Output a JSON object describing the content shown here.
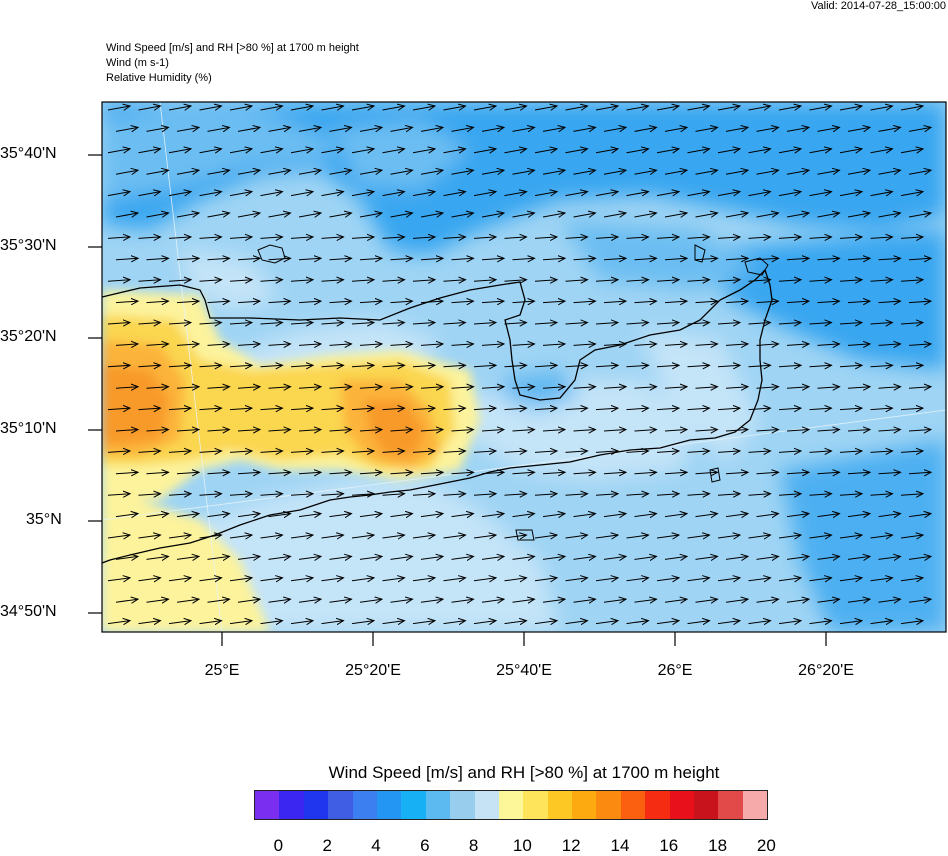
{
  "header": {
    "valid": "Valid: 2014-07-28_15:00:00",
    "title_lines": [
      "Wind Speed [m/s] and RH [>80 %] at 1700 m height",
      "Wind   (m s-1)",
      "Relative Humidity   (%)"
    ]
  },
  "map": {
    "lat_labels": [
      "35°40'N",
      "35°30'N",
      "35°20'N",
      "35°10'N",
      "35°N",
      "34°50'N"
    ],
    "lon_labels": [
      "25°E",
      "25°20'E",
      "25°40'E",
      "26°E",
      "26°20'E"
    ],
    "colors": {
      "background_field": "#9fd4f4",
      "deep_blue": "#39a6f0",
      "mid_blue": "#6cbef2",
      "light_blue": "#c4e4f8",
      "yellow_light": "#fcf39c",
      "yellow": "#fbd650",
      "orange_light": "#fcb33a",
      "orange": "#f89a2b",
      "coast": "#000000",
      "arrow": "#000000"
    }
  },
  "legend": {
    "title": "Wind Speed [m/s] and RH [>80 %] at 1700 m height",
    "colors": [
      "#7a2ff0",
      "#3a26f0",
      "#1f35ee",
      "#3f5ee4",
      "#3b7ff0",
      "#2296f2",
      "#18b0f4",
      "#5dbaf0",
      "#98cdee",
      "#c5e3f5",
      "#fdf79a",
      "#fde45a",
      "#fdc724",
      "#fcaa10",
      "#fb8a10",
      "#fa6010",
      "#f52b12",
      "#e8101a",
      "#c8121c",
      "#e24a4a",
      "#f6aaaa"
    ],
    "ticks": [
      "0",
      "2",
      "4",
      "6",
      "8",
      "10",
      "12",
      "14",
      "16",
      "18",
      "20"
    ]
  }
}
